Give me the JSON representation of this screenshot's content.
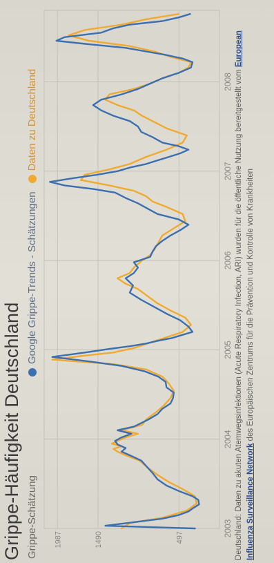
{
  "page": {
    "title": "Grippe-Häufigkeit Deutschland",
    "subtitle": "Grippe-Schätzung",
    "note_before": "Deutschland: Daten zu akuten Atemwegsinfektionen (Acute Respiratory Infection, ARI) wurden für die öffentliche Nutzung bereitgestellt vom ",
    "note_link": "European Influenza Surveillance Network",
    "note_after": " des Europäischen Zentrums für die Prävention und Kontrolle von Krankheiten"
  },
  "colors": {
    "google": "#3c6fb0",
    "data": "#efaa2f",
    "grid": "#c4c2b8",
    "axis_text": "#8a8984"
  },
  "chart_data": {
    "type": "line",
    "title": "Grippe-Häufigkeit Deutschland",
    "ylabel": "Grippe-Schätzung",
    "x_ticks": [
      "2003",
      "2004",
      "2005",
      "2006",
      "2007",
      "2008"
    ],
    "y_ticks": [
      497,
      1490,
      1987
    ],
    "xlim": [
      2003.0,
      2008.8
    ],
    "ylim": [
      0,
      2150
    ],
    "legend_position": "top",
    "series": [
      {
        "name": "Google Grippe-Trends - Schätzungen",
        "x": [
          2003.0,
          2003.03,
          2003.07,
          2003.11,
          2003.15,
          2003.19,
          2003.23,
          2003.27,
          2003.32,
          2003.36,
          2003.42,
          2003.48,
          2003.55,
          2003.62,
          2003.7,
          2003.76,
          2003.82,
          2003.86,
          2003.9,
          2003.94,
          2003.98,
          2004.02,
          2004.06,
          2004.1,
          2004.14,
          2004.18,
          2004.22,
          2004.28,
          2004.34,
          2004.4,
          2004.46,
          2004.52,
          2004.58,
          2004.64,
          2004.7,
          2004.76,
          2004.82,
          2004.87,
          2004.92,
          2004.97,
          2005.01,
          2005.04,
          2005.07,
          2005.1,
          2005.13,
          2005.16,
          2005.2,
          2005.26,
          2005.33,
          2005.4,
          2005.48,
          2005.56,
          2005.64,
          2005.72,
          2005.8,
          2005.86,
          2005.92,
          2005.98,
          2006.04,
          2006.1,
          2006.16,
          2006.22,
          2006.28,
          2006.34,
          2006.4,
          2006.46,
          2006.52,
          2006.58,
          2006.64,
          2006.7,
          2006.76,
          2006.8,
          2006.84,
          2006.88,
          2006.92,
          2006.96,
          2007.0,
          2007.04,
          2007.08,
          2007.12,
          2007.16,
          2007.2,
          2007.24,
          2007.28,
          2007.32,
          2007.38,
          2007.44,
          2007.5,
          2007.56,
          2007.62,
          2007.68,
          2007.74,
          2007.8,
          2007.86,
          2007.92,
          2007.98,
          2008.04,
          2008.1,
          2008.16,
          2008.22,
          2008.26,
          2008.3,
          2008.34,
          2008.38,
          2008.42,
          2008.46,
          2008.5,
          2008.55,
          2008.6,
          2008.64,
          2008.68,
          2008.72,
          2008.76
        ],
        "values": [
          300,
          1400,
          1050,
          700,
          500,
          380,
          320,
          250,
          260,
          330,
          500,
          650,
          760,
          820,
          900,
          960,
          1100,
          1200,
          1150,
          1250,
          1280,
          1200,
          1080,
          1250,
          1050,
          960,
          870,
          760,
          700,
          600,
          570,
          560,
          650,
          660,
          750,
          920,
          1200,
          1600,
          2050,
          1650,
          1350,
          1100,
          900,
          760,
          590,
          480,
          330,
          380,
          480,
          640,
          800,
          960,
          1100,
          1060,
          1150,
          1050,
          1000,
          1050,
          850,
          820,
          780,
          700,
          600,
          480,
          380,
          500,
          760,
          880,
          1000,
          1150,
          1280,
          1550,
          1900,
          2080,
          1800,
          1500,
          1250,
          1100,
          900,
          760,
          620,
          480,
          380,
          500,
          700,
          820,
          960,
          1000,
          1100,
          1300,
          1450,
          1550,
          1450,
          1200,
          1000,
          850,
          700,
          500,
          350,
          330,
          450,
          650,
          900,
          1150,
          1600,
          2000,
          1900,
          1450,
          1300,
          1100,
          700,
          500,
          360
        ]
      },
      {
        "name": "Daten zu Deutschland",
        "x": [
          2003.0,
          2003.06,
          2003.12,
          2003.2,
          2003.28,
          2003.36,
          2003.44,
          2003.52,
          2003.6,
          2003.68,
          2003.76,
          2003.82,
          2003.86,
          2003.89,
          2003.92,
          2003.95,
          2003.98,
          2004.02,
          2004.06,
          2004.1,
          2004.16,
          2004.22,
          2004.3,
          2004.38,
          2004.46,
          2004.54,
          2004.62,
          2004.7,
          2004.78,
          2004.84,
          2004.89,
          2004.93,
          2004.97,
          2005.02,
          2005.08,
          2005.14,
          2005.2,
          2005.28,
          2005.36,
          2005.44,
          2005.52,
          2005.6,
          2005.68,
          2005.74,
          2005.8,
          2005.86,
          2005.92,
          2006.0,
          2006.06,
          2006.12,
          2006.2,
          2006.28,
          2006.36,
          2006.44,
          2006.52,
          2006.6,
          2006.66,
          2006.72,
          2006.78,
          2006.84,
          2006.9,
          2006.96,
          2007.02,
          2007.08,
          2007.16,
          2007.24,
          2007.32,
          2007.4,
          2007.48,
          2007.56,
          2007.62,
          2007.68,
          2007.74,
          2007.8,
          2007.86,
          2007.92,
          2007.98,
          2008.04,
          2008.1,
          2008.16,
          2008.22,
          2008.28,
          2008.34,
          2008.4,
          2008.46,
          2008.52,
          2008.58,
          2008.64,
          2008.7,
          2008.76
        ],
        "values": [
          1200,
          1100,
          700,
          400,
          280,
          300,
          450,
          620,
          760,
          880,
          980,
          1150,
          1250,
          1300,
          1200,
          1320,
          1250,
          1150,
          1000,
          1200,
          950,
          900,
          780,
          680,
          600,
          560,
          620,
          700,
          900,
          1300,
          2050,
          1700,
          1300,
          1050,
          850,
          650,
          450,
          350,
          420,
          600,
          760,
          880,
          1000,
          1150,
          1250,
          1100,
          1050,
          950,
          850,
          800,
          750,
          700,
          560,
          420,
          450,
          650,
          820,
          900,
          1050,
          1350,
          1700,
          1650,
          1350,
          1100,
          900,
          650,
          450,
          400,
          650,
          820,
          950,
          1050,
          1250,
          1400,
          1350,
          1050,
          850,
          700,
          500,
          380,
          350,
          600,
          800,
          1100,
          1600,
          1850,
          1650,
          1200,
          900,
          500
        ]
      }
    ]
  }
}
